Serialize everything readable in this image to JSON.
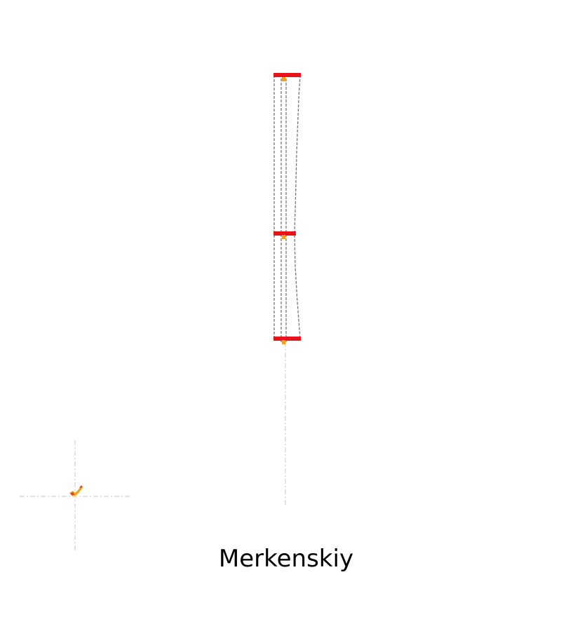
{
  "title": "Merkenskiy",
  "colors": {
    "background": "#ffffff",
    "bar": "#e8141c",
    "outline": "#777777",
    "guide": "#d0d0d0",
    "marker": "#f2a21c",
    "marker_dark": "#e0440c",
    "text": "#000000"
  },
  "elements": {
    "upper_bar": "red-horizontal-bar",
    "middle_bar": "red-horizontal-bar",
    "lower_bar": "red-horizontal-bar",
    "tapered_column": "dashed-outline-column",
    "center_guide": "dashed-vertical-guide",
    "origin_marker": "orange-marker-icon",
    "origin_crosshair": "dashed-crosshair"
  }
}
